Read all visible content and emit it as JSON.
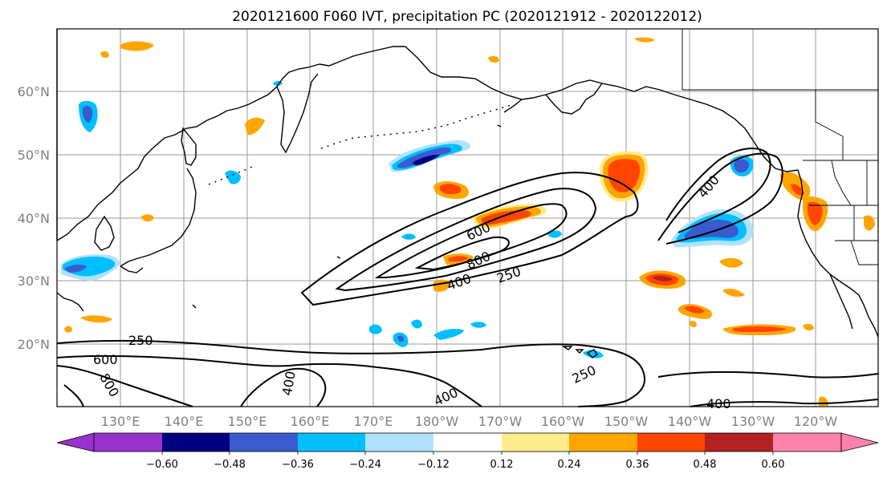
{
  "title": "2020121600 F060 IVT, precipitation PC (2020121912 - 2020122012)",
  "lat_labels": [
    "20°N",
    "30°N",
    "40°N",
    "50°N",
    "60°N"
  ],
  "lon_labels": [
    "130°E",
    "140°E",
    "150°E",
    "160°E",
    "170°E",
    "180°W",
    "170°W",
    "160°W",
    "150°W",
    "140°W",
    "130°W",
    "120°W"
  ],
  "contour_labels": [
    "250",
    "600",
    "800",
    "400",
    "400",
    "250",
    "400",
    "400",
    "250",
    "800",
    "600",
    "400",
    "400"
  ],
  "colorbar": {
    "ticks": [
      "−0.60",
      "−0.48",
      "−0.36",
      "−0.24",
      "−0.12",
      "0.12",
      "0.24",
      "0.36",
      "0.48",
      "0.60"
    ],
    "colors": [
      "#9932cc",
      "#000080",
      "#3a5bcd",
      "#00bfff",
      "#b0e2ff",
      "#ffffff",
      "#ffec8b",
      "#ffa500",
      "#ff4500",
      "#b22222",
      "#ff82ab"
    ]
  },
  "colors": {
    "yellow": "#ffec8b",
    "orange": "#ffa500",
    "orangered": "#ff4500",
    "firebrick": "#b22222",
    "lightblue": "#b0e2ff",
    "deepskyblue": "#00bfff",
    "royalblue": "#3a5bcd",
    "navy": "#000080"
  }
}
